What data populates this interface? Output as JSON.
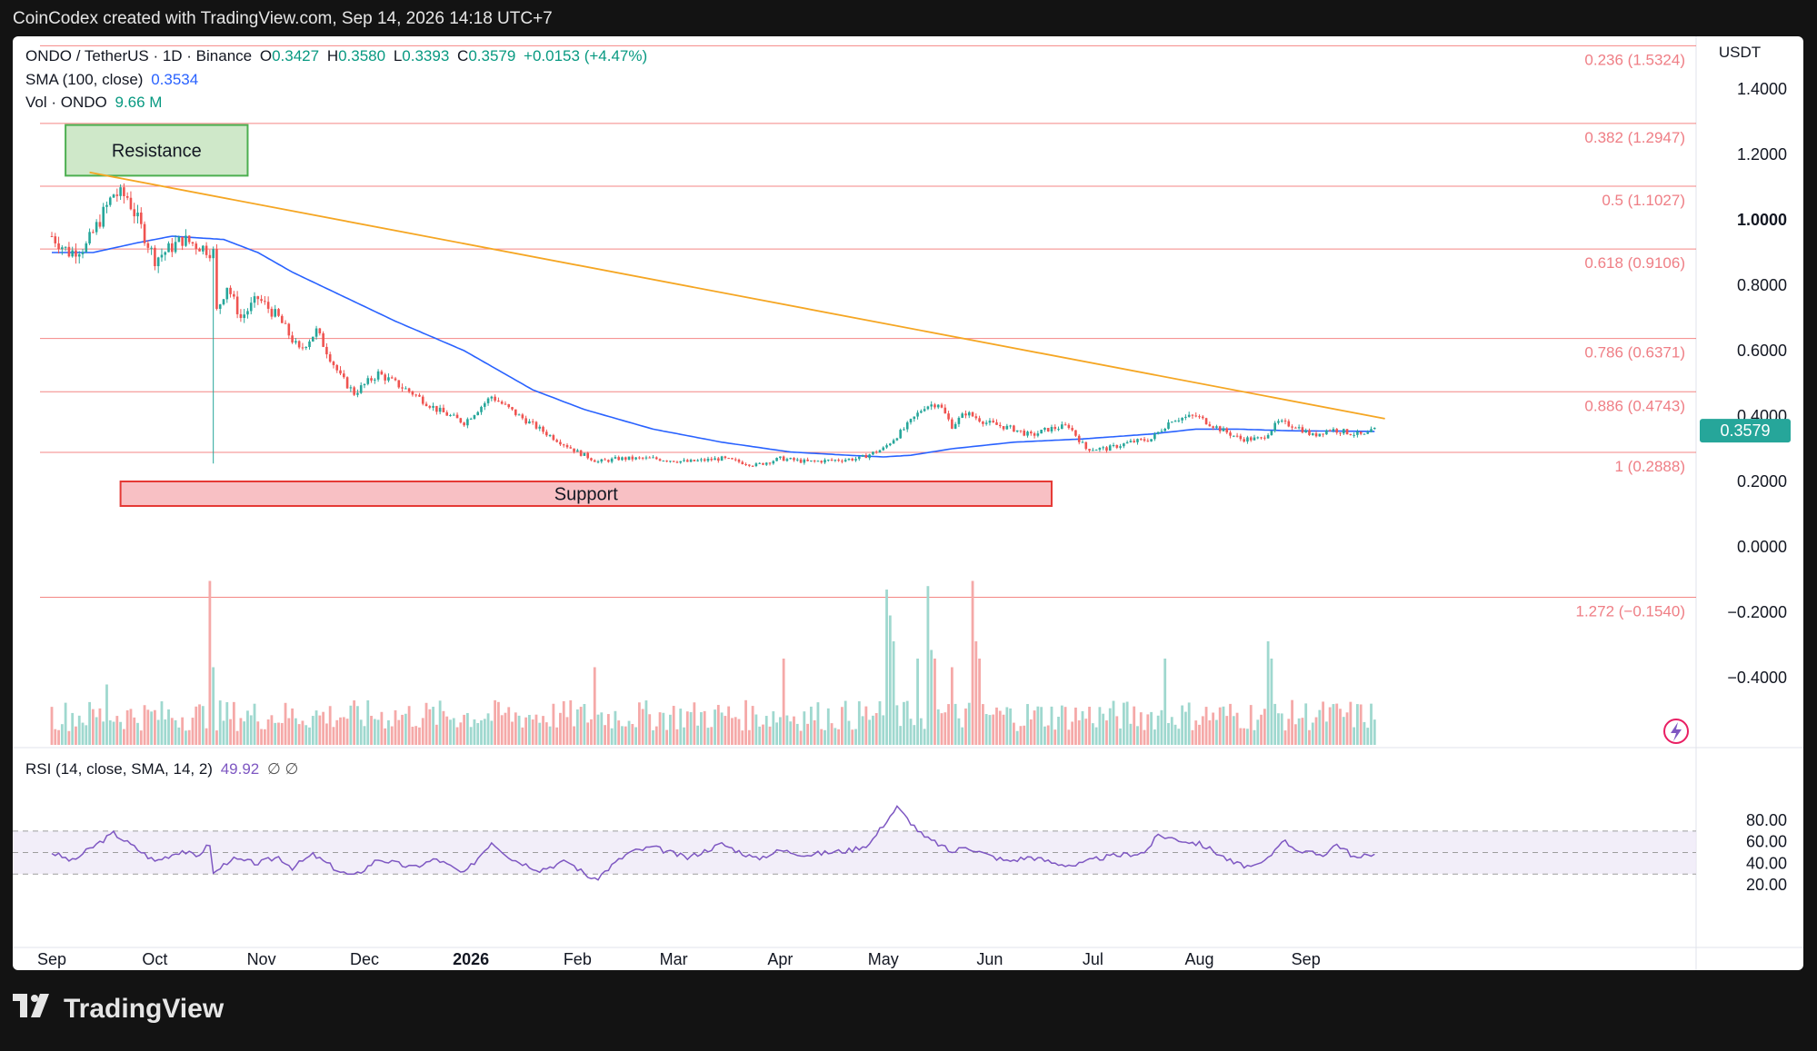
{
  "header": {
    "attribution": "CoinCodex created with TradingView.com, Sep 14, 2026 14:18 UTC+7"
  },
  "legend": {
    "symbol": "ONDO / TetherUS · 1D · Binance",
    "o_label": "O",
    "o_value": "0.3427",
    "h_label": "H",
    "h_value": "0.3580",
    "l_label": "L",
    "l_value": "0.3393",
    "c_label": "C",
    "c_value": "0.3579",
    "change": "+0.0153 (+4.47%)",
    "sma_label": "SMA (100, close)",
    "sma_value": "0.3534",
    "vol_label": "Vol · ONDO",
    "vol_value": "9.66 M",
    "rsi_label": "RSI (14, close, SMA, 14, 2)",
    "rsi_value": "49.92",
    "rsi_extra": "∅ ∅"
  },
  "footer": {
    "brand": "TradingView"
  },
  "chart_data": {
    "type": "candlestick",
    "price_axis": {
      "currency": "USDT",
      "ticks": [
        1.4,
        1.2,
        1.0,
        0.8,
        0.6,
        0.4,
        0.2,
        0.0,
        -0.2,
        -0.4
      ],
      "tick_labels": [
        "1.4000",
        "1.2000",
        "1.0000",
        "0.8000",
        "0.6000",
        "0.4000",
        "0.2000",
        "0.0000",
        "−0.2000",
        "−0.4000"
      ],
      "bold_tick": "1.0000",
      "last_price_label": "0.3579",
      "ylim": [
        -0.5,
        1.6
      ]
    },
    "time_axis": {
      "labels": [
        "Sep",
        "Oct",
        "Nov",
        "Dec",
        "2026",
        "Feb",
        "Mar",
        "Apr",
        "May",
        "Jun",
        "Jul",
        "Aug",
        "Sep"
      ],
      "label_days": [
        0,
        30,
        61,
        91,
        122,
        153,
        181,
        212,
        242,
        273,
        303,
        334,
        365
      ]
    },
    "fibonacci": [
      {
        "price": 1.5324,
        "label": "0.236 (1.5324)"
      },
      {
        "price": 1.2947,
        "label": "0.382 (1.2947)"
      },
      {
        "price": 1.1027,
        "label": "0.5 (1.1027)"
      },
      {
        "price": 0.9106,
        "label": "0.618 (0.9106)"
      },
      {
        "price": 0.6371,
        "label": "0.786 (0.6371)"
      },
      {
        "price": 0.4743,
        "label": "0.886 (0.4743)"
      },
      {
        "price": 0.2888,
        "label": "1 (0.2888)"
      },
      {
        "price": -0.154,
        "label": "1.272 (−0.1540)"
      }
    ],
    "zones": [
      {
        "label": "Resistance",
        "top": 1.29,
        "bottom": 1.135,
        "start_day": 4,
        "end_day": 57,
        "color": "#cfe8c9"
      },
      {
        "label": "Support",
        "top": 0.2,
        "bottom": 0.125,
        "start_day": 20,
        "end_day": 291,
        "color": "#f8c0c4"
      }
    ],
    "trendline": {
      "start_day": 11,
      "start_price": 1.145,
      "end_day": 388,
      "end_price": 0.392,
      "color": "#f5a623"
    },
    "colors": {
      "up": "#26a69a",
      "down": "#ef5350",
      "sma": "#2962ff",
      "rsi": "#7e57c2",
      "fib": "#ef5350"
    },
    "close_anchors": [
      [
        0,
        0.95
      ],
      [
        5,
        0.9
      ],
      [
        10,
        0.92
      ],
      [
        18,
        1.08
      ],
      [
        22,
        1.07
      ],
      [
        30,
        0.88
      ],
      [
        38,
        0.94
      ],
      [
        43,
        0.92
      ],
      [
        47,
        0.9
      ],
      [
        48,
        0.72
      ],
      [
        51,
        0.8
      ],
      [
        55,
        0.7
      ],
      [
        60,
        0.76
      ],
      [
        66,
        0.7
      ],
      [
        72,
        0.6
      ],
      [
        77,
        0.66
      ],
      [
        84,
        0.52
      ],
      [
        88,
        0.47
      ],
      [
        95,
        0.53
      ],
      [
        105,
        0.47
      ],
      [
        112,
        0.42
      ],
      [
        120,
        0.38
      ],
      [
        128,
        0.46
      ],
      [
        136,
        0.4
      ],
      [
        145,
        0.34
      ],
      [
        153,
        0.29
      ],
      [
        159,
        0.26
      ],
      [
        165,
        0.27
      ],
      [
        175,
        0.27
      ],
      [
        185,
        0.26
      ],
      [
        195,
        0.27
      ],
      [
        205,
        0.25
      ],
      [
        212,
        0.27
      ],
      [
        220,
        0.26
      ],
      [
        235,
        0.27
      ],
      [
        242,
        0.3
      ],
      [
        248,
        0.36
      ],
      [
        254,
        0.43
      ],
      [
        258,
        0.44
      ],
      [
        262,
        0.37
      ],
      [
        266,
        0.41
      ],
      [
        272,
        0.38
      ],
      [
        280,
        0.36
      ],
      [
        285,
        0.34
      ],
      [
        290,
        0.36
      ],
      [
        296,
        0.37
      ],
      [
        301,
        0.3
      ],
      [
        307,
        0.3
      ],
      [
        314,
        0.32
      ],
      [
        320,
        0.33
      ],
      [
        326,
        0.39
      ],
      [
        333,
        0.4
      ],
      [
        340,
        0.36
      ],
      [
        346,
        0.33
      ],
      [
        352,
        0.33
      ],
      [
        357,
        0.38
      ],
      [
        362,
        0.37
      ],
      [
        367,
        0.34
      ],
      [
        372,
        0.36
      ],
      [
        377,
        0.35
      ],
      [
        382,
        0.34
      ],
      [
        385,
        0.358
      ]
    ],
    "sma_anchors": [
      [
        0,
        0.9
      ],
      [
        12,
        0.9
      ],
      [
        25,
        0.93
      ],
      [
        35,
        0.95
      ],
      [
        50,
        0.94
      ],
      [
        60,
        0.9
      ],
      [
        70,
        0.84
      ],
      [
        80,
        0.79
      ],
      [
        100,
        0.69
      ],
      [
        120,
        0.6
      ],
      [
        140,
        0.48
      ],
      [
        155,
        0.42
      ],
      [
        175,
        0.36
      ],
      [
        195,
        0.32
      ],
      [
        215,
        0.29
      ],
      [
        232,
        0.28
      ],
      [
        242,
        0.275
      ],
      [
        250,
        0.28
      ],
      [
        262,
        0.3
      ],
      [
        280,
        0.32
      ],
      [
        300,
        0.33
      ],
      [
        320,
        0.345
      ],
      [
        333,
        0.36
      ],
      [
        345,
        0.36
      ],
      [
        360,
        0.355
      ],
      [
        385,
        0.353
      ]
    ],
    "rsi": {
      "axis_ticks": [
        80,
        60,
        40,
        20
      ],
      "tick_labels": [
        "80.00",
        "60.00",
        "40.00",
        "20.00"
      ],
      "band": [
        30,
        70
      ],
      "midline": 50,
      "anchors": [
        [
          0,
          50
        ],
        [
          6,
          42
        ],
        [
          10,
          51
        ],
        [
          18,
          68
        ],
        [
          24,
          55
        ],
        [
          30,
          42
        ],
        [
          38,
          52
        ],
        [
          42,
          46
        ],
        [
          46,
          58
        ],
        [
          47,
          30
        ],
        [
          52,
          44
        ],
        [
          60,
          40
        ],
        [
          66,
          46
        ],
        [
          70,
          36
        ],
        [
          76,
          48
        ],
        [
          84,
          32
        ],
        [
          88,
          28
        ],
        [
          95,
          44
        ],
        [
          105,
          36
        ],
        [
          112,
          44
        ],
        [
          120,
          30
        ],
        [
          128,
          60
        ],
        [
          134,
          44
        ],
        [
          142,
          34
        ],
        [
          150,
          42
        ],
        [
          158,
          24
        ],
        [
          163,
          38
        ],
        [
          168,
          50
        ],
        [
          175,
          55
        ],
        [
          185,
          45
        ],
        [
          195,
          58
        ],
        [
          205,
          44
        ],
        [
          212,
          52
        ],
        [
          220,
          48
        ],
        [
          232,
          52
        ],
        [
          238,
          58
        ],
        [
          243,
          80
        ],
        [
          246,
          92
        ],
        [
          250,
          78
        ],
        [
          254,
          64
        ],
        [
          258,
          58
        ],
        [
          262,
          50
        ],
        [
          266,
          56
        ],
        [
          272,
          48
        ],
        [
          278,
          42
        ],
        [
          285,
          46
        ],
        [
          292,
          40
        ],
        [
          298,
          38
        ],
        [
          305,
          45
        ],
        [
          312,
          48
        ],
        [
          318,
          50
        ],
        [
          322,
          66
        ],
        [
          328,
          62
        ],
        [
          334,
          58
        ],
        [
          338,
          52
        ],
        [
          344,
          40
        ],
        [
          350,
          36
        ],
        [
          354,
          44
        ],
        [
          358,
          62
        ],
        [
          364,
          50
        ],
        [
          370,
          48
        ],
        [
          374,
          58
        ],
        [
          380,
          44
        ],
        [
          385,
          50
        ]
      ]
    },
    "volume": {
      "spikes": [
        [
          46,
          0.95
        ],
        [
          47,
          0.45
        ],
        [
          158,
          0.45
        ],
        [
          243,
          0.9
        ],
        [
          244,
          0.75
        ],
        [
          245,
          0.6
        ],
        [
          255,
          0.92
        ],
        [
          256,
          0.55
        ],
        [
          257,
          0.5
        ],
        [
          268,
          0.95
        ],
        [
          269,
          0.6
        ],
        [
          270,
          0.5
        ],
        [
          213,
          0.5
        ],
        [
          324,
          0.5
        ],
        [
          354,
          0.6
        ],
        [
          355,
          0.5
        ],
        [
          16,
          0.35
        ],
        [
          252,
          0.5
        ],
        [
          262,
          0.45
        ]
      ]
    }
  }
}
